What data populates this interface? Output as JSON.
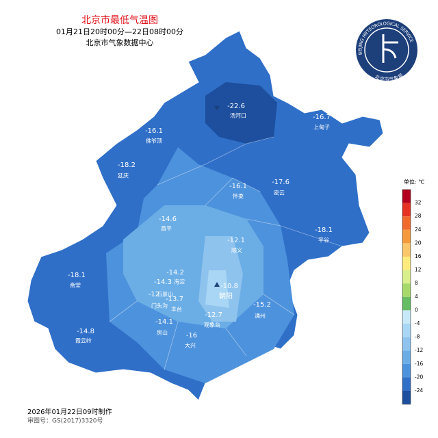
{
  "header": {
    "title": "北京市最低气温图",
    "period": "01月21日20时00分—22日08时00分",
    "source": "北京市气象数据中心"
  },
  "logo": {
    "text_en": "BEIJING METEOROLOGICAL SERVICE",
    "text_cn": "北京市气象局"
  },
  "stations": [
    {
      "label": "汤河口",
      "value": -22.6
    },
    {
      "label": "上甸子",
      "value": -16.7
    },
    {
      "label": "佛爷顶",
      "value": -16.1
    },
    {
      "label": "延庆",
      "value": -18.2
    },
    {
      "label": "怀柔",
      "value": -16.1
    },
    {
      "label": "密云",
      "value": -17.6
    },
    {
      "label": "昌平",
      "value": -14.6
    },
    {
      "label": "平谷",
      "value": -18.1
    },
    {
      "label": "顺义",
      "value": -12.1
    },
    {
      "label": "斋堂",
      "value": -18.1
    },
    {
      "value": -14.2
    },
    {
      "label": "海淀",
      "value": -14.3
    },
    {
      "label": "石景山",
      "value": -12
    },
    {
      "label": "丰台",
      "value": -13.7
    },
    {
      "label": "门头沟"
    },
    {
      "label": "朝阳",
      "value": -10.8
    },
    {
      "label": "通州",
      "value": -15.2
    },
    {
      "label": "观象台",
      "value": -12.7
    },
    {
      "label": "房山",
      "value": -14.1
    },
    {
      "label": "大兴",
      "value": -16.0
    },
    {
      "label": "霞云岭",
      "value": -14.8
    }
  ],
  "legend": {
    "unit": "单位: ℃",
    "ticks": [
      32,
      28,
      24,
      20,
      16,
      12,
      8,
      4,
      0,
      -4,
      -8,
      -12,
      -16,
      -20,
      -24
    ],
    "colors": [
      "#b2001e",
      "#e63223",
      "#f06a2d",
      "#f59a3c",
      "#fbc56a",
      "#fdeb7e",
      "#d9ef8b",
      "#a6d96a",
      "#66bd63",
      "#c7e9f7",
      "#a9d6f5",
      "#8ec3ee",
      "#6baee6",
      "#4d92dc",
      "#2f6fc8",
      "#1d4f9e"
    ]
  },
  "footer": {
    "made": "2026年01月22日09时制作",
    "approval": "审图号：GS(2017)3320号"
  }
}
